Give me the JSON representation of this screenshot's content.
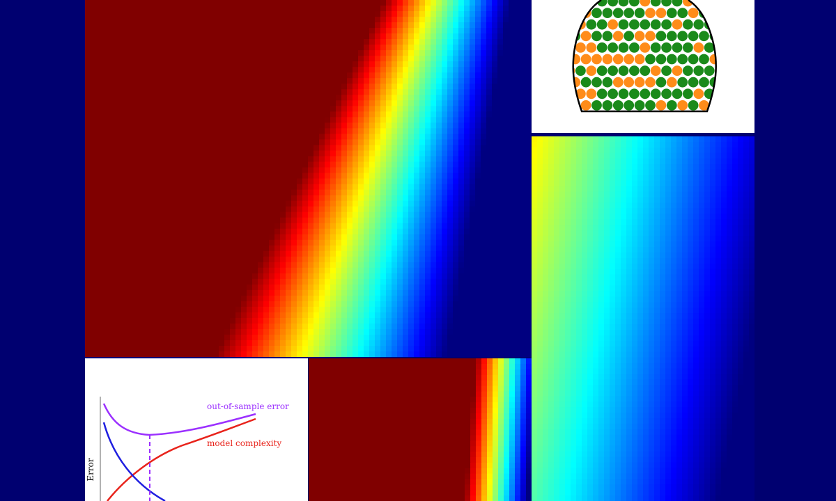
{
  "figure": {
    "background_color": "#000070",
    "colormap": "jet"
  },
  "error_plot": {
    "ylabel": "Error",
    "curves": [
      {
        "label": "out-of-sample error",
        "color": "#9b30ff"
      },
      {
        "label": "model complexity",
        "color": "#e8231b"
      },
      {
        "label": "",
        "color": "#1f1fe0"
      }
    ],
    "optimum_marker_color": "#9b30ff"
  },
  "vase": {
    "colors": [
      "#1a8a1a",
      "#ff8c1a"
    ],
    "outline_color": "#000000"
  }
}
